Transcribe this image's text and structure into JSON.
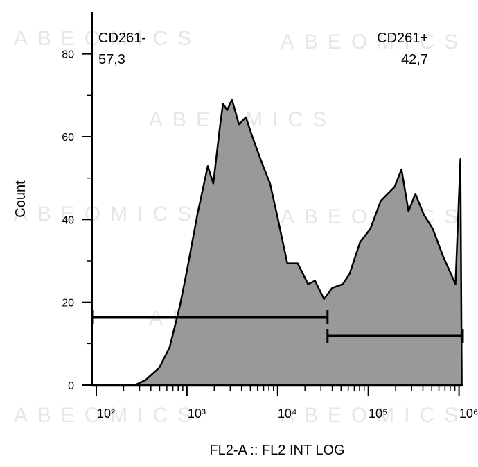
{
  "chart_data": {
    "type": "histogram",
    "x_label": "FL2-A :: FL2 INT LOG",
    "y_label": "Count",
    "watermark": "ABEOMICS",
    "x_log": true,
    "xlim": [
      90,
      1100000
    ],
    "ylim": [
      0,
      90
    ],
    "xticks": [
      {
        "value": 100,
        "label": "10²"
      },
      {
        "value": 1000,
        "label": "10³"
      },
      {
        "value": 10000,
        "label": "10⁴"
      },
      {
        "value": 100000,
        "label": "10⁵"
      },
      {
        "value": 1000000,
        "label": "10⁶"
      }
    ],
    "x_minor_ticks": [
      200,
      300,
      400,
      500,
      600,
      700,
      800,
      900,
      2000,
      3000,
      4000,
      5000,
      6000,
      7000,
      8000,
      9000,
      20000,
      30000,
      40000,
      50000,
      60000,
      70000,
      80000,
      90000,
      200000,
      300000,
      400000,
      500000,
      600000,
      700000,
      800000,
      900000
    ],
    "yticks": [
      0,
      20,
      40,
      60,
      80
    ],
    "y_minor_ticks": [
      10,
      30,
      50,
      70
    ],
    "color": "#999999",
    "x": [
      90,
      267,
      348,
      495,
      645,
      839,
      1000,
      1302,
      1694,
      1950,
      2325,
      2495,
      2773,
      3135,
      3738,
      4458,
      5315,
      6918,
      8246,
      9825,
      12790,
      16640,
      21670,
      25830,
      32450,
      40090,
      52240,
      62230,
      80950,
      105400,
      137100,
      195000,
      232300,
      277300,
      330400,
      408300,
      512900,
      667300,
      915000,
      1036000,
      1074000
    ],
    "values": [
      0,
      0,
      1.2,
      4.2,
      9.2,
      19.3,
      27.7,
      41.2,
      52.9,
      48.7,
      63,
      68,
      66.4,
      69,
      63,
      64.7,
      59.7,
      52.9,
      48.7,
      41.2,
      29.4,
      29.4,
      24.4,
      25.2,
      20.8,
      23.5,
      24.4,
      26.9,
      34.5,
      37.8,
      44.5,
      47.9,
      52.1,
      42,
      46.2,
      41.2,
      37.8,
      31.1,
      24.4,
      54.6,
      0
    ],
    "gates": [
      {
        "name": "CD261-",
        "value": 57.3,
        "value_label": "57,3",
        "range": [
          90,
          35500
        ]
      },
      {
        "name": "CD261+",
        "value": 42.7,
        "value_label": "42,7",
        "range": [
          35500,
          1100000
        ]
      }
    ]
  }
}
